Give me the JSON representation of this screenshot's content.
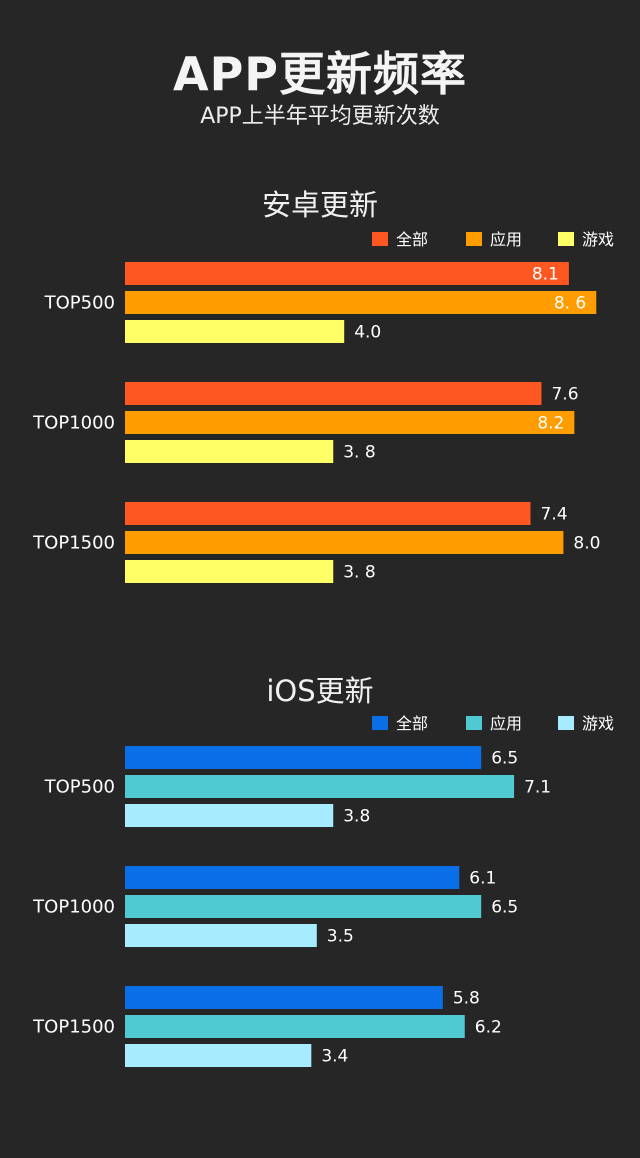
{
  "header": {
    "title": "APP更新频率",
    "subtitle": "APP上半年平均更新次数"
  },
  "chart_data": [
    {
      "type": "bar",
      "orientation": "horizontal",
      "title": "安卓更新",
      "categories": [
        "TOP500",
        "TOP1000",
        "TOP1500"
      ],
      "series": [
        {
          "name": "全部",
          "color": "#ff5722",
          "values": [
            8.1,
            7.6,
            7.4
          ],
          "labels": [
            "8.1",
            "7.6",
            "7.4"
          ]
        },
        {
          "name": "应用",
          "color": "#ff9c00",
          "values": [
            8.6,
            8.2,
            8.0
          ],
          "labels": [
            "8. 6",
            "8.2",
            "8.0"
          ]
        },
        {
          "name": "游戏",
          "color": "#ffff66",
          "values": [
            4.0,
            3.8,
            3.8
          ],
          "labels": [
            "4.0",
            "3. 8",
            "3. 8"
          ]
        }
      ],
      "legend": "top-right",
      "grid": false,
      "xlim": [
        0,
        10
      ]
    },
    {
      "type": "bar",
      "orientation": "horizontal",
      "title": "iOS更新",
      "categories": [
        "TOP500",
        "TOP1000",
        "TOP1500"
      ],
      "series": [
        {
          "name": "全部",
          "color": "#0a6ee6",
          "values": [
            6.5,
            6.1,
            5.8
          ],
          "labels": [
            "6.5",
            "6.1",
            "5.8"
          ]
        },
        {
          "name": "应用",
          "color": "#4fcad3",
          "values": [
            7.1,
            6.5,
            6.2
          ],
          "labels": [
            "7.1",
            "6.5",
            "6.2"
          ]
        },
        {
          "name": "游戏",
          "color": "#a6ebff",
          "values": [
            3.8,
            3.5,
            3.4
          ],
          "labels": [
            "3.8",
            "3.5",
            "3.4"
          ]
        }
      ],
      "legend": "top-right",
      "grid": false,
      "xlim": [
        0,
        10
      ]
    }
  ]
}
